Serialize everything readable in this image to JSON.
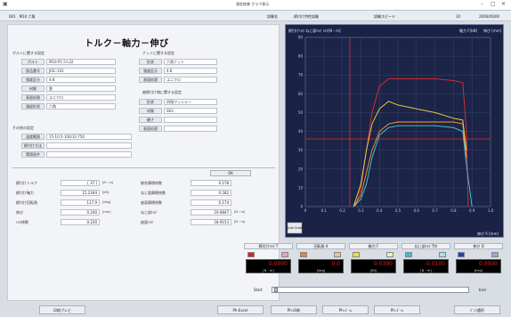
{
  "window": {
    "title": "測定結果 グラフ表示",
    "menu_left": "001　M10 六角",
    "fields": [
      {
        "label": "試験名",
        "value": "締付け特性試験"
      },
      {
        "label": "試験スピード",
        "value": "10"
      },
      {
        "label": "",
        "value": "2000/00/00"
      }
    ]
  },
  "page_title": "トルク－軸力－伸び",
  "bolt_section": {
    "heading": "ボルトに関する設定",
    "rows": [
      {
        "label": "ボルト",
        "value": "M10-P1.5-L32"
      },
      {
        "label": "部品番号",
        "value": "JISC-101"
      },
      {
        "label": "強度区分",
        "value": "4.8"
      },
      {
        "label": "材質",
        "value": "鉄"
      },
      {
        "label": "表面処理",
        "value": "ユニクロ"
      },
      {
        "label": "頭部形状",
        "value": "六角"
      }
    ]
  },
  "nut_section": {
    "heading": "ナットに関する設定",
    "rows": [
      {
        "label": "形状",
        "value": "六角ナット"
      },
      {
        "label": "強度区分",
        "value": "4.8"
      },
      {
        "label": "表面処理",
        "value": "ユニクロ"
      }
    ]
  },
  "clamped_section": {
    "heading": "被締付け物に関する設定",
    "rows": [
      {
        "label": "形状",
        "value": "四角ワッシャー"
      },
      {
        "label": "材質",
        "value": "SK3"
      },
      {
        "label": "硬さ",
        "value": ""
      },
      {
        "label": "表面処理",
        "value": ""
      }
    ]
  },
  "other_section": {
    "heading": "その他の設定",
    "rows": [
      {
        "label": "温度範囲",
        "value": "15-10.5-100/10.750"
      },
      {
        "label": "締付け方法",
        "value": ""
      },
      {
        "label": "潤滑条件",
        "value": ""
      }
    ]
  },
  "results_left": [
    {
      "label": "締付けトルク",
      "value": "[ 37 ]",
      "unit": "[N・m]"
    },
    {
      "label": "締付け軸力",
      "value": "15.2344",
      "unit": "[kN]"
    },
    {
      "label": "締付け回転角",
      "value": "117.9",
      "unit": "[deg]"
    },
    {
      "label": "伸び",
      "value": "0.240",
      "unit": "[mm]"
    },
    {
      "label": "ﾄﾙｸ係数",
      "value": "0.230",
      "unit": ""
    }
  ],
  "results_right": [
    {
      "label": "総合摩擦係数",
      "value": "0.178",
      "unit": ""
    },
    {
      "label": "ねじ面摩擦係数",
      "value": "0.182",
      "unit": ""
    },
    {
      "label": "座面摩擦係数",
      "value": "0.174",
      "unit": ""
    },
    {
      "label": "ねじ部ﾄﾙｸ",
      "value": "19.0847",
      "unit": "[N・m]"
    },
    {
      "label": "座面ﾄﾙｸ",
      "value": "18.9153",
      "unit": "[N・m]"
    }
  ],
  "results_button": "OK",
  "chart": {
    "top_left_label": "締付けﾄﾙｸ  ねじ部ﾄﾙｸ ﾄﾙｸ[N・m]",
    "top_right_label_1": "軸力 F[kN]",
    "top_right_label_2": "伸び [mm]",
    "bottom_right_label": "伸び δ [mm]",
    "auto_scale": "Auto Scale"
  },
  "chart_data": {
    "type": "line",
    "xlabel": "伸び δ [mm]",
    "xlim": [
      0,
      1.0
    ],
    "ylim": [
      0,
      90
    ],
    "x_ticks": [
      "0",
      "0.1",
      "0.2",
      "0.3",
      "0.4",
      "0.5",
      "0.6",
      "0.7",
      "0.8",
      "0.9",
      "1.0"
    ],
    "y_ticks": [
      "0",
      "10",
      "20",
      "30",
      "40",
      "50",
      "60",
      "70",
      "80",
      "90"
    ],
    "reference_y": 36,
    "reference_x": 0.24,
    "series": [
      {
        "color": "#e03030",
        "x": [
          0.27,
          0.3,
          0.33,
          0.36,
          0.4,
          0.45,
          0.5,
          0.6,
          0.7,
          0.8,
          0.85,
          0.87,
          0.88
        ],
        "y": [
          0,
          10,
          30,
          50,
          64,
          68,
          68,
          68,
          68,
          67,
          66,
          40,
          0
        ]
      },
      {
        "color": "#f0e040",
        "x": [
          0.26,
          0.3,
          0.33,
          0.36,
          0.4,
          0.45,
          0.5,
          0.6,
          0.7,
          0.8,
          0.85,
          0.87
        ],
        "y": [
          0,
          12,
          30,
          44,
          52,
          56,
          54,
          52,
          50,
          47,
          46,
          30
        ]
      },
      {
        "color": "#ff9a30",
        "x": [
          0.26,
          0.3,
          0.33,
          0.36,
          0.4,
          0.45,
          0.5,
          0.6,
          0.7,
          0.8,
          0.85,
          0.87
        ],
        "y": [
          0,
          6,
          18,
          30,
          40,
          44,
          45,
          45,
          45,
          45,
          44,
          26
        ]
      },
      {
        "color": "#40d0e0",
        "x": [
          0.26,
          0.3,
          0.33,
          0.36,
          0.4,
          0.45,
          0.5,
          0.6,
          0.7,
          0.8,
          0.85,
          0.87,
          0.9
        ],
        "y": [
          0,
          4,
          12,
          26,
          38,
          42,
          43,
          43,
          43,
          42,
          40,
          22,
          0
        ]
      }
    ]
  },
  "meters": [
    {
      "name": "締付けﾄﾙｸ T",
      "value": "0.0000",
      "unit": "[N・m]",
      "colors": [
        "#e02020",
        "#f0a0c0"
      ]
    },
    {
      "name": "回転角 θ",
      "value": "0.0",
      "unit": "[deg]",
      "colors": [
        "#f08030",
        "#f0c090"
      ]
    },
    {
      "name": "軸力 F",
      "value": "0.0390",
      "unit": "[kN]",
      "colors": [
        "#f0e020",
        "#f8f0a0"
      ]
    },
    {
      "name": "ねじ部ﾄﾙｸ Tth",
      "value": "-0.0100",
      "unit": "[N・m]",
      "colors": [
        "#30c0d0",
        "#a0e0f0"
      ]
    },
    {
      "name": "伸び D",
      "value": "0.0000",
      "unit": "[mm]",
      "colors": [
        "#2040c0",
        "#90a8e8"
      ]
    }
  ],
  "slider": {
    "start_label": "Start",
    "end_label": "End"
  },
  "bottom_buttons": [
    "印刷プレビ",
    "Ph-Excel",
    "Ph-印刷",
    "Ph-ｽﾞｰﾑ",
    "Ph-ｽﾞｰﾑ",
    "ｸﾞﾗﾌ選択"
  ]
}
